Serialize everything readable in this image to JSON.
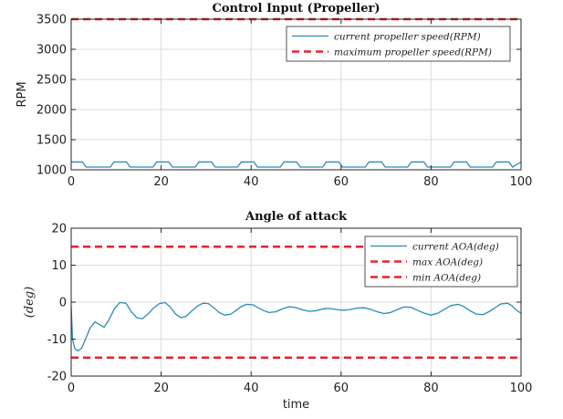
{
  "chart_data": [
    {
      "type": "line",
      "title": "Control Input (Propeller)",
      "xlabel": "",
      "ylabel": "RPM",
      "xlim": [
        0,
        100
      ],
      "ylim": [
        1000,
        3500
      ],
      "xticks": [
        "0",
        "20",
        "40",
        "60",
        "80",
        "100"
      ],
      "yticks": [
        "1000",
        "1500",
        "2000",
        "2500",
        "3000",
        "3500"
      ],
      "grid": true,
      "legend": "top-right",
      "series": [
        {
          "name": "current propeller speed(RPM)",
          "color": "#2a8bb8",
          "style": "solid",
          "x": [
            0,
            2.5,
            3.3,
            8.7,
            9.5,
            12.3,
            13.1,
            18.2,
            19.0,
            21.7,
            22.5,
            27.6,
            28.4,
            31.2,
            32.0,
            37.0,
            37.8,
            40.6,
            41.4,
            46.5,
            47.3,
            50.1,
            50.9,
            55.9,
            56.7,
            59.5,
            60.3,
            65.4,
            66.2,
            69.0,
            69.8,
            74.8,
            75.6,
            78.4,
            79.2,
            84.3,
            85.1,
            87.9,
            88.7,
            93.7,
            94.5,
            97.3,
            98.1,
            100
          ],
          "y": [
            1130,
            1130,
            1045,
            1045,
            1130,
            1130,
            1045,
            1045,
            1130,
            1130,
            1045,
            1045,
            1130,
            1130,
            1045,
            1045,
            1130,
            1130,
            1045,
            1045,
            1130,
            1130,
            1045,
            1045,
            1130,
            1130,
            1045,
            1045,
            1130,
            1130,
            1045,
            1045,
            1130,
            1130,
            1045,
            1045,
            1130,
            1130,
            1045,
            1045,
            1130,
            1130,
            1045,
            1130
          ]
        },
        {
          "name": "maximum propeller speed(RPM)",
          "color": "#e8212b",
          "style": "dashed",
          "x": [
            0,
            100
          ],
          "y": [
            3500,
            3500
          ]
        }
      ]
    },
    {
      "type": "line",
      "title": "Angle of attack",
      "xlabel": "time",
      "ylabel": "(deg)",
      "xlim": [
        0,
        100
      ],
      "ylim": [
        -20,
        20
      ],
      "xticks": [
        "0",
        "20",
        "40",
        "60",
        "80",
        "100"
      ],
      "yticks": [
        "-20",
        "-10",
        "0",
        "10",
        "20"
      ],
      "grid": true,
      "legend": "top-right",
      "series": [
        {
          "name": "current AOA(deg)",
          "color": "#2a8bb8",
          "style": "solid",
          "x": [
            0,
            0.3,
            0.8,
            1.5,
            2.3,
            3.2,
            4.2,
            5.3,
            6.2,
            7.3,
            8.3,
            9.6,
            10.8,
            12.2,
            13.3,
            14.6,
            15.8,
            17.0,
            18.3,
            19.6,
            20.9,
            22.0,
            23.2,
            24.4,
            25.6,
            26.8,
            28.0,
            29.3,
            30.5,
            31.7,
            32.9,
            34.1,
            35.4,
            36.6,
            37.8,
            39.0,
            40.4,
            41.5,
            42.8,
            44.0,
            45.5,
            47.0,
            48.5,
            50.0,
            51.5,
            53.0,
            54.5,
            56.0,
            57.5,
            59.0,
            60.5,
            62.0,
            63.5,
            65.0,
            66.5,
            68.0,
            69.5,
            71.0,
            72.5,
            74.0,
            75.5,
            77.0,
            78.5,
            80.0,
            81.5,
            83.0,
            84.5,
            86.0,
            87.0,
            88.5,
            90.0,
            91.5,
            93.0,
            94.5,
            95.5,
            97.0,
            98.0,
            99.0,
            100
          ],
          "y": [
            -1,
            -10,
            -12.5,
            -13.2,
            -12.5,
            -10,
            -7,
            -5.3,
            -6,
            -6.8,
            -5,
            -1.8,
            -0.1,
            -0.3,
            -2.5,
            -4.2,
            -4.5,
            -3.3,
            -1.6,
            -0.4,
            -0.1,
            -1.3,
            -3.2,
            -4.2,
            -3.8,
            -2.4,
            -1.1,
            -0.3,
            -0.4,
            -1.5,
            -2.8,
            -3.5,
            -3.3,
            -2.3,
            -1.2,
            -0.6,
            -0.7,
            -1.5,
            -2.3,
            -2.8,
            -2.6,
            -1.8,
            -1.2,
            -1.5,
            -2.1,
            -2.5,
            -2.3,
            -1.8,
            -1.7,
            -2.0,
            -2.2,
            -2.0,
            -1.6,
            -1.5,
            -1.9,
            -2.6,
            -3.1,
            -2.8,
            -2.0,
            -1.3,
            -1.4,
            -2.2,
            -3.0,
            -3.5,
            -3.0,
            -1.9,
            -0.9,
            -0.6,
            -1.0,
            -2.2,
            -3.2,
            -3.4,
            -2.5,
            -1.3,
            -0.5,
            -0.3,
            -1.0,
            -2.2,
            -3.0
          ]
        },
        {
          "name": "max AOA(deg)",
          "color": "#e8212b",
          "style": "dashed",
          "x": [
            0,
            100
          ],
          "y": [
            15,
            15
          ]
        },
        {
          "name": "min AOA(deg)",
          "color": "#e8212b",
          "style": "dashed",
          "x": [
            0,
            100
          ],
          "y": [
            -15,
            -15
          ]
        }
      ]
    }
  ]
}
